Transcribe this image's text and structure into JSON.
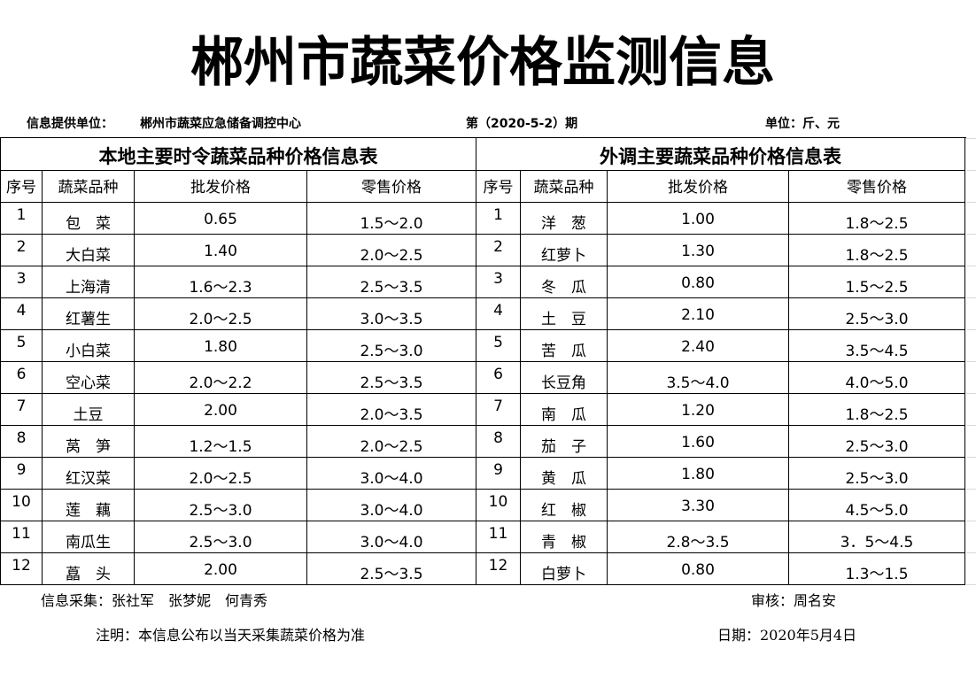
{
  "title": "郴州市蔬菜价格监测信息",
  "info": {
    "provider_label": "信息提供单位：",
    "provider": "郴州市蔬菜应急储备调控中心",
    "period": "第（2020-5-2）期",
    "unit": "单位：斤、元"
  },
  "tables": [
    {
      "title": "本地主要时令蔬菜品种价格信息表",
      "headers": [
        "序号",
        "蔬菜品种",
        "批发价格",
        "零售价格"
      ],
      "rows": [
        [
          1,
          "包　菜",
          "0.65",
          "1.5～2.0"
        ],
        [
          2,
          "大白菜",
          "1.40",
          "2.0～2.5"
        ],
        [
          3,
          "上海清",
          "1.6～2.3",
          "2.5～3.5"
        ],
        [
          4,
          "红薯生",
          "2.0～2.5",
          "3.0～3.5"
        ],
        [
          5,
          "小白菜",
          "1.80",
          "2.5～3.0"
        ],
        [
          6,
          "空心菜",
          "2.0～2.2",
          "2.5～3.5"
        ],
        [
          7,
          "土豆",
          "2.00",
          "2.0～3.5"
        ],
        [
          8,
          "莴　笋",
          "1.2～1.5",
          "2.0～2.5"
        ],
        [
          9,
          "红汉菜",
          "2.0～2.5",
          "3.0～4.0"
        ],
        [
          10,
          "莲　藕",
          "2.5～3.0",
          "3.0～4.0"
        ],
        [
          11,
          "南瓜生",
          "2.5～3.0",
          "3.0～4.0"
        ],
        [
          12,
          "藠　头",
          "2.00",
          "2.5～3.5"
        ]
      ]
    },
    {
      "title": "外调主要蔬菜品种价格信息表",
      "headers": [
        "序号",
        "蔬菜品种",
        "批发价格",
        "零售价格"
      ],
      "rows": [
        [
          1,
          "洋　葱",
          "1.00",
          "1.8～2.5"
        ],
        [
          2,
          "红萝卜",
          "1.30",
          "1.8～2.5"
        ],
        [
          3,
          "冬　瓜",
          "0.80",
          "1.5～2.5"
        ],
        [
          4,
          "土　豆",
          "2.10",
          "2.5～3.0"
        ],
        [
          5,
          "苦　瓜",
          "2.40",
          "3.5～4.5"
        ],
        [
          6,
          "长豆角",
          "3.5～4.0",
          "4.0～5.0"
        ],
        [
          7,
          "南　瓜",
          "1.20",
          "1.8～2.5"
        ],
        [
          8,
          "茄　子",
          "1.60",
          "2.5～3.0"
        ],
        [
          9,
          "黄　瓜",
          "1.80",
          "2.5～3.0"
        ],
        [
          10,
          "红　椒",
          "3.30",
          "4.5～5.0"
        ],
        [
          11,
          "青　椒",
          "2.8～3.5",
          "3．5～4.5"
        ],
        [
          12,
          "白萝卜",
          "0.80",
          "1.3～1.5"
        ]
      ]
    }
  ],
  "footer": {
    "collectors": "信息采集：张社军　张梦妮　何青秀",
    "reviewer": "审核：周名安",
    "note": "注明：本信息公布以当天采集蔬菜价格为准",
    "date": "日期：2020年5月4日"
  }
}
